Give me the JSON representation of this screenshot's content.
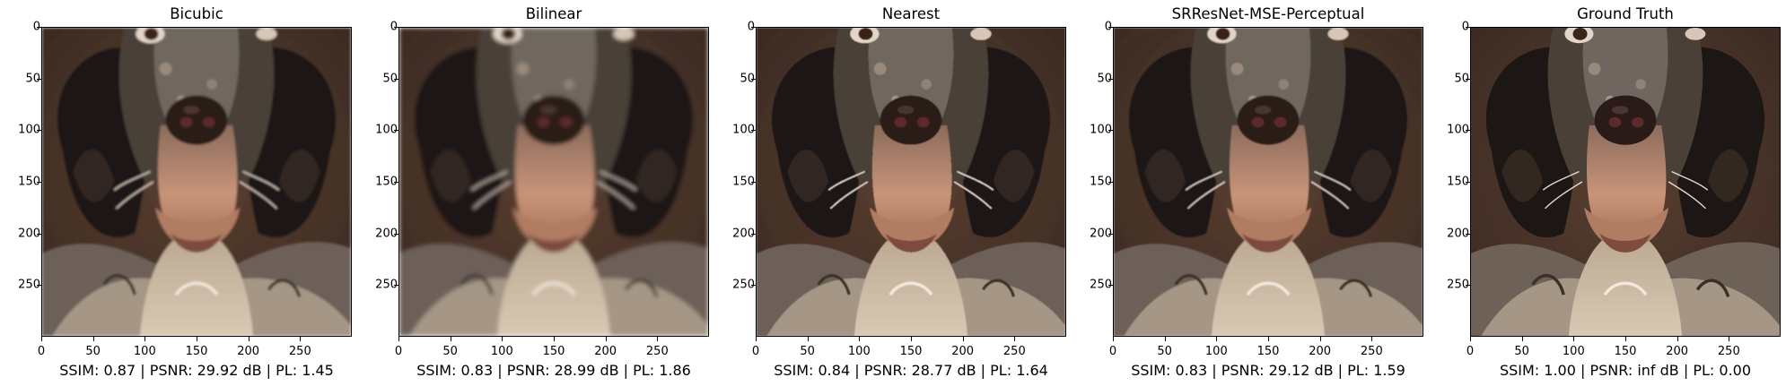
{
  "figure": {
    "panels": [
      {
        "title": "Bicubic",
        "metrics": "SSIM: 0.87 | PSNR: 29.92 dB | PL: 1.45",
        "blur": 1.2,
        "pixelated": false
      },
      {
        "title": "Bilinear",
        "metrics": "SSIM: 0.83 | PSNR: 28.99 dB | PL: 1.86",
        "blur": 2.2,
        "pixelated": false
      },
      {
        "title": "Nearest",
        "metrics": "SSIM: 0.84 | PSNR: 28.77 dB | PL: 1.64",
        "blur": 0.4,
        "pixelated": true
      },
      {
        "title": "SRResNet-MSE-Perceptual",
        "metrics": "SSIM: 0.83 | PSNR: 29.12 dB | PL: 1.59",
        "blur": 0.8,
        "pixelated": false
      },
      {
        "title": "Ground Truth",
        "metrics": "SSIM: 1.00 | PSNR: inf dB | PL: 0.00",
        "blur": 0,
        "pixelated": false
      }
    ],
    "y_ticks": [
      "0",
      "50",
      "100",
      "150",
      "200",
      "250"
    ],
    "x_ticks": [
      "0",
      "50",
      "100",
      "150",
      "200",
      "250"
    ],
    "axis_range": [
      0,
      300
    ],
    "image_subject": "dog-face-closeup",
    "colors": {
      "background": "#3b2a22",
      "fur_dark": "#1c1714",
      "fur_light": "#d8c9b4",
      "muzzle": "#c89478",
      "nose": "#2a1a18"
    }
  }
}
